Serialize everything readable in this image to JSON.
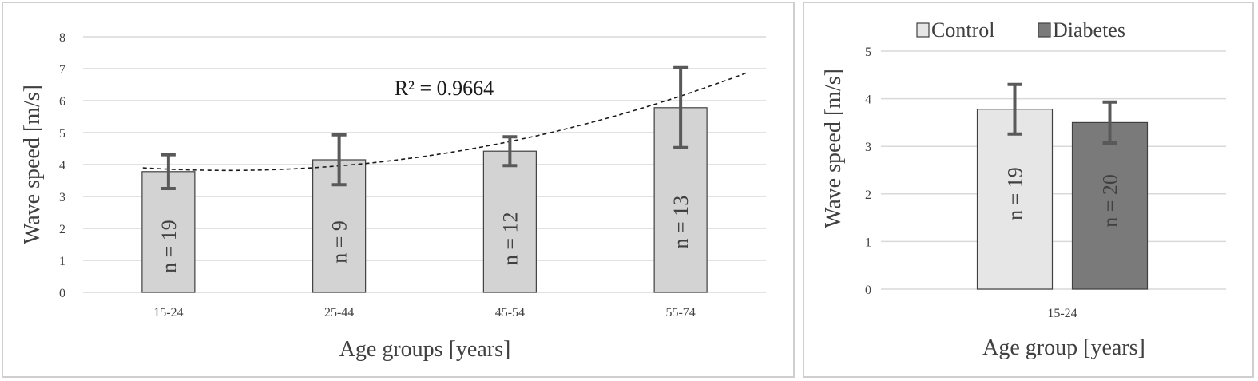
{
  "chart_data": [
    {
      "type": "bar",
      "categories": [
        "15-24",
        "25-44",
        "45-54",
        "55-74"
      ],
      "values": [
        3.78,
        4.15,
        4.42,
        5.78
      ],
      "error": [
        0.53,
        0.78,
        0.45,
        1.25
      ],
      "bar_labels": [
        "n = 19",
        "n = 9",
        "n = 12",
        "n = 13"
      ],
      "xlabel": "Age groups [years]",
      "ylabel": "Wave speed [m/s]",
      "ylim": [
        0,
        8
      ],
      "yticks": [
        "0",
        "1",
        "2",
        "3",
        "4",
        "5",
        "6",
        "7",
        "8"
      ],
      "trendline": {
        "type": "polynomial",
        "style": "dashed",
        "label": "R² = 0.9664",
        "values": [
          3.85,
          3.98,
          4.7,
          6.15
        ]
      },
      "grid": true,
      "bar_color": "#d3d3d3"
    },
    {
      "type": "bar",
      "categories": [
        "15-24"
      ],
      "series": [
        {
          "name": "Control",
          "values": [
            3.78
          ],
          "error": [
            0.52
          ],
          "bar_label": "n = 19",
          "color": "#e6e6e6"
        },
        {
          "name": "Diabetes",
          "values": [
            3.5
          ],
          "error": [
            0.43
          ],
          "bar_label": "n = 20",
          "color": "#7a7a7a"
        }
      ],
      "xlabel": "Age group [years]",
      "ylabel": "Wave speed [m/s]",
      "ylim": [
        0,
        5
      ],
      "yticks": [
        "0",
        "1",
        "2",
        "3",
        "4",
        "5"
      ],
      "legend": "top",
      "grid": true
    }
  ]
}
